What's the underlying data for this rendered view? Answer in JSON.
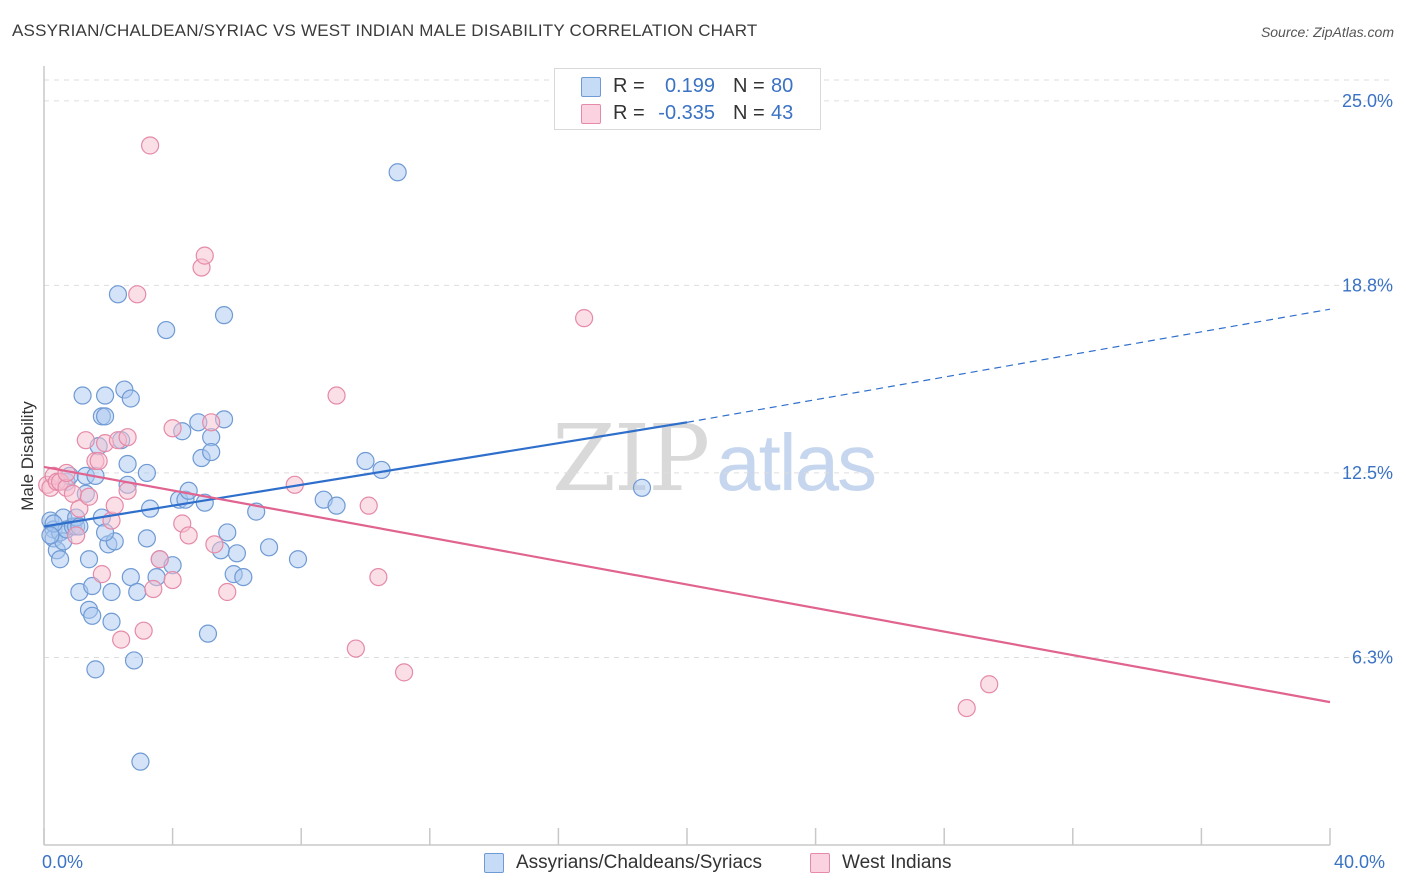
{
  "title": "ASSYRIAN/CHALDEAN/SYRIAC VS WEST INDIAN MALE DISABILITY CORRELATION CHART",
  "source": "Source: ZipAtlas.com",
  "watermark": {
    "left": "ZIP",
    "right": "atlas"
  },
  "colors": {
    "blue_fill": "#aac8f0",
    "blue_stroke": "#6f9ad4",
    "blue_line": "#2f6fcc",
    "pink_fill": "#f7bfd0",
    "pink_stroke": "#e58aa8",
    "pink_line": "#e0648f",
    "axis_label": "#3a72c4",
    "grid": "#dddddd"
  },
  "legend_top": [
    {
      "r_label": "R =",
      "r_value": "0.199",
      "n_label": "N =",
      "n_value": "80",
      "series": "blue"
    },
    {
      "r_label": "R =",
      "r_value": "-0.335",
      "n_label": "N =",
      "n_value": "43",
      "series": "pink"
    }
  ],
  "legend_bottom": [
    {
      "label": "Assyrians/Chaldeans/Syriacs",
      "series": "blue"
    },
    {
      "label": "West Indians",
      "series": "pink"
    }
  ],
  "chart_data": {
    "type": "scatter",
    "title": "ASSYRIAN/CHALDEAN/SYRIAC VS WEST INDIAN MALE DISABILITY CORRELATION CHART",
    "xlabel": "",
    "ylabel": "Male Disability",
    "xlim": [
      0,
      40
    ],
    "ylim": [
      0,
      25.7
    ],
    "x_tick_labels": [
      "0.0%",
      "40.0%"
    ],
    "y_ticks": [
      6.3,
      12.5,
      18.8,
      25.0
    ],
    "y_tick_labels": [
      "6.3%",
      "12.5%",
      "18.8%",
      "25.0%"
    ],
    "grid": true,
    "series": [
      {
        "name": "Assyrians/Chaldeans/Syriacs",
        "color": "blue",
        "points": [
          [
            0.2,
            10.9
          ],
          [
            0.3,
            10.6
          ],
          [
            0.3,
            10.3
          ],
          [
            0.4,
            9.9
          ],
          [
            0.5,
            10.5
          ],
          [
            0.5,
            9.6
          ],
          [
            0.6,
            11.0
          ],
          [
            0.6,
            10.2
          ],
          [
            0.7,
            10.6
          ],
          [
            0.7,
            12.2
          ],
          [
            0.8,
            12.4
          ],
          [
            0.9,
            10.7
          ],
          [
            1.0,
            10.7
          ],
          [
            1.0,
            11.0
          ],
          [
            1.1,
            10.7
          ],
          [
            1.1,
            8.5
          ],
          [
            1.2,
            15.1
          ],
          [
            1.3,
            11.8
          ],
          [
            1.3,
            12.4
          ],
          [
            1.4,
            7.9
          ],
          [
            1.4,
            9.6
          ],
          [
            1.5,
            8.7
          ],
          [
            1.5,
            7.7
          ],
          [
            1.6,
            12.4
          ],
          [
            1.6,
            5.9
          ],
          [
            1.7,
            13.4
          ],
          [
            1.8,
            14.4
          ],
          [
            1.8,
            11.0
          ],
          [
            1.9,
            15.1
          ],
          [
            1.9,
            14.4
          ],
          [
            2.0,
            10.1
          ],
          [
            2.1,
            8.5
          ],
          [
            2.1,
            7.5
          ],
          [
            2.2,
            10.2
          ],
          [
            2.3,
            18.5
          ],
          [
            2.4,
            13.6
          ],
          [
            2.5,
            15.3
          ],
          [
            2.6,
            12.1
          ],
          [
            2.6,
            12.8
          ],
          [
            2.7,
            9.0
          ],
          [
            2.7,
            15.0
          ],
          [
            2.8,
            6.2
          ],
          [
            2.9,
            8.5
          ],
          [
            3.0,
            2.8
          ],
          [
            3.2,
            10.3
          ],
          [
            3.2,
            12.5
          ],
          [
            3.3,
            11.3
          ],
          [
            3.5,
            9.0
          ],
          [
            3.6,
            9.6
          ],
          [
            3.8,
            17.3
          ],
          [
            4.0,
            9.4
          ],
          [
            4.2,
            11.6
          ],
          [
            4.3,
            13.9
          ],
          [
            4.4,
            11.6
          ],
          [
            4.5,
            11.9
          ],
          [
            4.8,
            14.2
          ],
          [
            4.9,
            13.0
          ],
          [
            5.0,
            11.5
          ],
          [
            5.1,
            7.1
          ],
          [
            5.2,
            13.7
          ],
          [
            5.2,
            13.2
          ],
          [
            5.5,
            9.9
          ],
          [
            5.6,
            14.3
          ],
          [
            5.6,
            17.8
          ],
          [
            5.7,
            10.5
          ],
          [
            5.9,
            9.1
          ],
          [
            6.0,
            9.8
          ],
          [
            6.2,
            9.0
          ],
          [
            6.6,
            11.2
          ],
          [
            7.0,
            10.0
          ],
          [
            7.9,
            9.6
          ],
          [
            8.7,
            11.6
          ],
          [
            9.1,
            11.4
          ],
          [
            10.0,
            12.9
          ],
          [
            10.5,
            12.6
          ],
          [
            11.0,
            22.6
          ],
          [
            18.6,
            12.0
          ],
          [
            0.3,
            10.8
          ],
          [
            0.2,
            10.4
          ],
          [
            1.9,
            10.5
          ]
        ]
      },
      {
        "name": "West Indians",
        "color": "pink",
        "points": [
          [
            0.1,
            12.1
          ],
          [
            0.2,
            12.0
          ],
          [
            0.3,
            12.4
          ],
          [
            0.4,
            12.2
          ],
          [
            0.5,
            12.2
          ],
          [
            0.7,
            12.0
          ],
          [
            0.7,
            12.5
          ],
          [
            0.9,
            11.8
          ],
          [
            1.0,
            10.4
          ],
          [
            1.1,
            11.3
          ],
          [
            1.3,
            13.6
          ],
          [
            1.4,
            11.7
          ],
          [
            1.6,
            12.9
          ],
          [
            1.7,
            12.9
          ],
          [
            1.8,
            9.1
          ],
          [
            1.9,
            13.5
          ],
          [
            2.1,
            10.9
          ],
          [
            2.2,
            11.4
          ],
          [
            2.3,
            13.6
          ],
          [
            2.4,
            6.9
          ],
          [
            2.6,
            13.7
          ],
          [
            2.6,
            11.9
          ],
          [
            2.9,
            18.5
          ],
          [
            3.1,
            7.2
          ],
          [
            3.3,
            23.5
          ],
          [
            3.4,
            8.6
          ],
          [
            3.6,
            9.6
          ],
          [
            4.0,
            14.0
          ],
          [
            4.0,
            8.9
          ],
          [
            4.3,
            10.8
          ],
          [
            4.5,
            10.4
          ],
          [
            4.9,
            19.4
          ],
          [
            5.0,
            19.8
          ],
          [
            5.2,
            14.2
          ],
          [
            5.3,
            10.1
          ],
          [
            5.7,
            8.5
          ],
          [
            7.8,
            12.1
          ],
          [
            9.1,
            15.1
          ],
          [
            9.7,
            6.6
          ],
          [
            10.1,
            11.4
          ],
          [
            10.4,
            9.0
          ],
          [
            11.2,
            5.8
          ],
          [
            28.7,
            4.6
          ]
        ]
      }
    ],
    "trend_lines": [
      {
        "series": "Assyrians/Chaldeans/Syriacs",
        "x": [
          0,
          20.0
        ],
        "y": [
          10.7,
          14.2
        ],
        "style": "solid"
      },
      {
        "series": "Assyrians/Chaldeans/Syriacs",
        "x": [
          20.0,
          40.0
        ],
        "y": [
          14.2,
          18.0
        ],
        "style": "dashed"
      },
      {
        "series": "West Indians",
        "x": [
          0,
          40.0
        ],
        "y": [
          12.7,
          4.8
        ],
        "style": "solid"
      }
    ],
    "extra_points": [
      [
        29.4,
        5.4
      ],
      [
        16.8,
        17.7
      ]
    ]
  }
}
